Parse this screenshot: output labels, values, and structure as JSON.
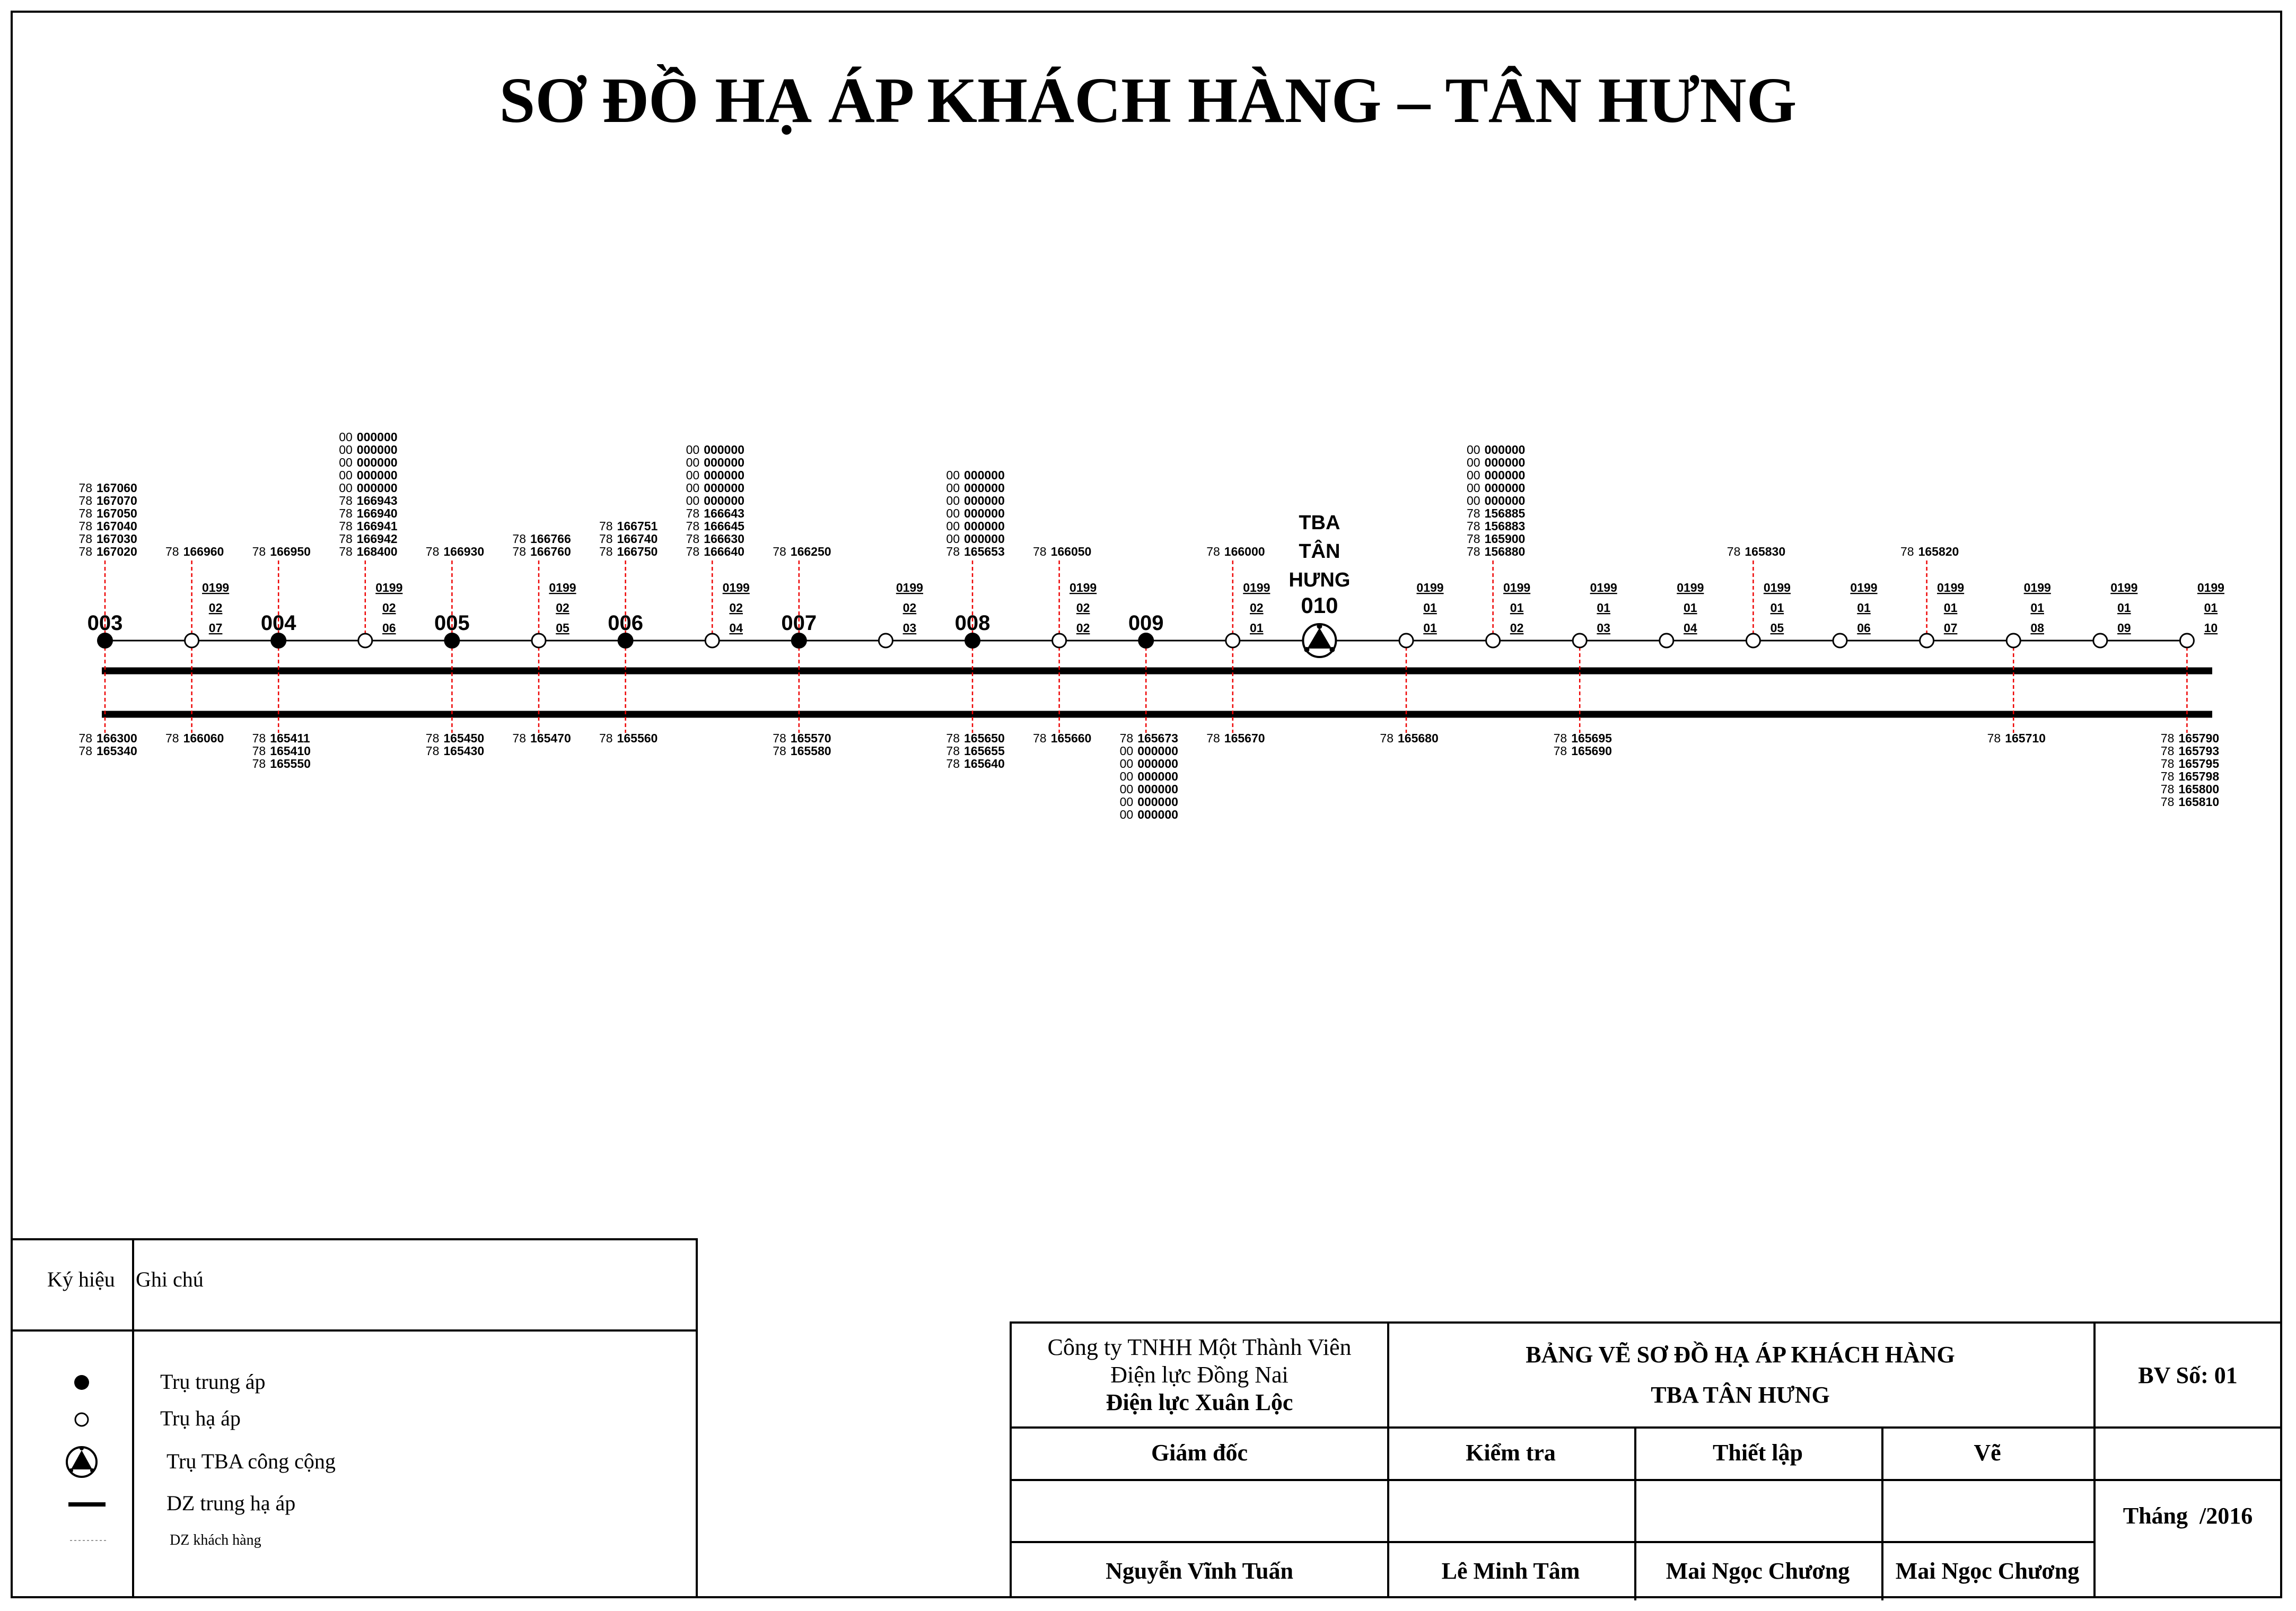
{
  "title": "SƠ ĐỒ HẠ ÁP KHÁCH HÀNG – TÂN HƯNG",
  "tba": {
    "label_lines": [
      "TBA",
      "TÂN",
      "HƯNG"
    ],
    "code": "010"
  },
  "poles": [
    {
      "type": "mv",
      "label": "003",
      "up": [
        "78 167060",
        "78 167070",
        "78 167050",
        "78 167040",
        "78 167030",
        "78 167020"
      ],
      "down": [
        "78 166300",
        "78 165340"
      ]
    },
    {
      "type": "lv",
      "code": [
        "0199",
        "02",
        "07"
      ],
      "up": [
        "78 166960"
      ],
      "down": [
        "78 166060"
      ]
    },
    {
      "type": "mv",
      "label": "004",
      "up": [
        "78 166950"
      ],
      "down": [
        "78 165411",
        "78 165410",
        "78 165550"
      ]
    },
    {
      "type": "lv",
      "code": [
        "0199",
        "02",
        "06"
      ],
      "up": [
        "00 000000",
        "00 000000",
        "00 000000",
        "00 000000",
        "00 000000",
        "78 166943",
        "78 166940",
        "78 166941",
        "78 166942",
        "78 168400"
      ],
      "down": []
    },
    {
      "type": "mv",
      "label": "005",
      "up": [
        "78 166930"
      ],
      "down": [
        "78 165450",
        "78 165430"
      ]
    },
    {
      "type": "lv",
      "code": [
        "0199",
        "02",
        "05"
      ],
      "up": [
        "78 166766",
        "78 166760"
      ],
      "down": [
        "78 165470"
      ]
    },
    {
      "type": "mv",
      "label": "006",
      "up": [
        "78 166751",
        "78 166740",
        "78 166750"
      ],
      "down": [
        "78 165560"
      ]
    },
    {
      "type": "lv",
      "code": [
        "0199",
        "02",
        "04"
      ],
      "up": [
        "00 000000",
        "00 000000",
        "00 000000",
        "00 000000",
        "00 000000",
        "78 166643",
        "78 166645",
        "78 166630",
        "78 166640"
      ],
      "down": []
    },
    {
      "type": "mv",
      "label": "007",
      "up": [
        "78 166250"
      ],
      "down": [
        "78 165570",
        "78 165580"
      ]
    },
    {
      "type": "lv",
      "code": [
        "0199",
        "02",
        "03"
      ],
      "up": [],
      "down": []
    },
    {
      "type": "mv",
      "label": "008",
      "up": [
        "00 000000",
        "00 000000",
        "00 000000",
        "00 000000",
        "00 000000",
        "00 000000",
        "78 165653"
      ],
      "down": [
        "78 165650",
        "78 165655",
        "78 165640"
      ]
    },
    {
      "type": "lv",
      "code": [
        "0199",
        "02",
        "02"
      ],
      "up": [
        "78 166050"
      ],
      "down": [
        "78 165660"
      ]
    },
    {
      "type": "mv",
      "label": "009",
      "up": [],
      "down": [
        "78 165673",
        "00 000000",
        "00 000000",
        "00 000000",
        "00 000000",
        "00 000000",
        "00 000000"
      ]
    },
    {
      "type": "lv",
      "code": [
        "0199",
        "02",
        "01"
      ],
      "up": [
        "78 166000"
      ],
      "down": [
        "78 165670"
      ]
    },
    {
      "type": "tba",
      "up": [],
      "down": []
    },
    {
      "type": "lv",
      "code": [
        "0199",
        "01",
        "01"
      ],
      "up": [],
      "down": [
        "78 165680"
      ]
    },
    {
      "type": "lv",
      "code": [
        "0199",
        "01",
        "02"
      ],
      "up": [
        "00 000000",
        "00 000000",
        "00 000000",
        "00 000000",
        "00 000000",
        "78 156885",
        "78 156883",
        "78 165900",
        "78 156880"
      ],
      "down": []
    },
    {
      "type": "lv",
      "code": [
        "0199",
        "01",
        "03"
      ],
      "up": [],
      "down": [
        "78 165695",
        "78 165690"
      ]
    },
    {
      "type": "lv",
      "code": [
        "0199",
        "01",
        "04"
      ],
      "up": [],
      "down": []
    },
    {
      "type": "lv",
      "code": [
        "0199",
        "01",
        "05"
      ],
      "up": [
        "78 165830"
      ],
      "down": []
    },
    {
      "type": "lv",
      "code": [
        "0199",
        "01",
        "06"
      ],
      "up": [],
      "down": []
    },
    {
      "type": "lv",
      "code": [
        "0199",
        "01",
        "07"
      ],
      "up": [
        "78 165820"
      ],
      "down": []
    },
    {
      "type": "lv",
      "code": [
        "0199",
        "01",
        "08"
      ],
      "up": [],
      "down": [
        "78 165710"
      ]
    },
    {
      "type": "lv",
      "code": [
        "0199",
        "01",
        "09"
      ],
      "up": [],
      "down": []
    },
    {
      "type": "lv",
      "code": [
        "0199",
        "01",
        "10"
      ],
      "up": [],
      "down": [
        "78 165790",
        "78 165793",
        "78 165795",
        "78 165798",
        "78 165800",
        "78 165810"
      ]
    }
  ],
  "legend": {
    "header_symbol": "Ký hiệu",
    "header_note": "Ghi chú",
    "items": [
      {
        "symbol": "mv-pole",
        "label": "Trụ trung áp"
      },
      {
        "symbol": "lv-pole",
        "label": "Trụ hạ áp"
      },
      {
        "symbol": "tba",
        "label": "Trụ TBA công cộng"
      },
      {
        "symbol": "mv-line",
        "label": "DZ trung hạ áp"
      },
      {
        "symbol": "customer-line",
        "label": "DZ khách hàng"
      }
    ]
  },
  "title_block": {
    "company_line1": "Công ty TNHH Một Thành Viên",
    "company_line2": "Điện lực Đồng Nai",
    "company_line3": "Điện lực Xuân Lộc",
    "drawing_title1": "BẢNG VẼ SƠ ĐỒ HẠ ÁP KHÁCH HÀNG",
    "drawing_title2": "TBA TÂN HƯNG",
    "sheet_no": "BV Số: 01",
    "col_director": "Giám đốc",
    "col_check": "Kiểm tra",
    "col_setup": "Thiết lập",
    "col_draw": "Vẽ",
    "month_label": "Tháng",
    "month_value": "/2016",
    "name_director": "Nguyễn Vĩnh Tuấn",
    "name_check": "Lê Minh Tâm",
    "name_setup": "Mai Ngọc Chương",
    "name_draw": "Mai Ngọc Chương"
  }
}
